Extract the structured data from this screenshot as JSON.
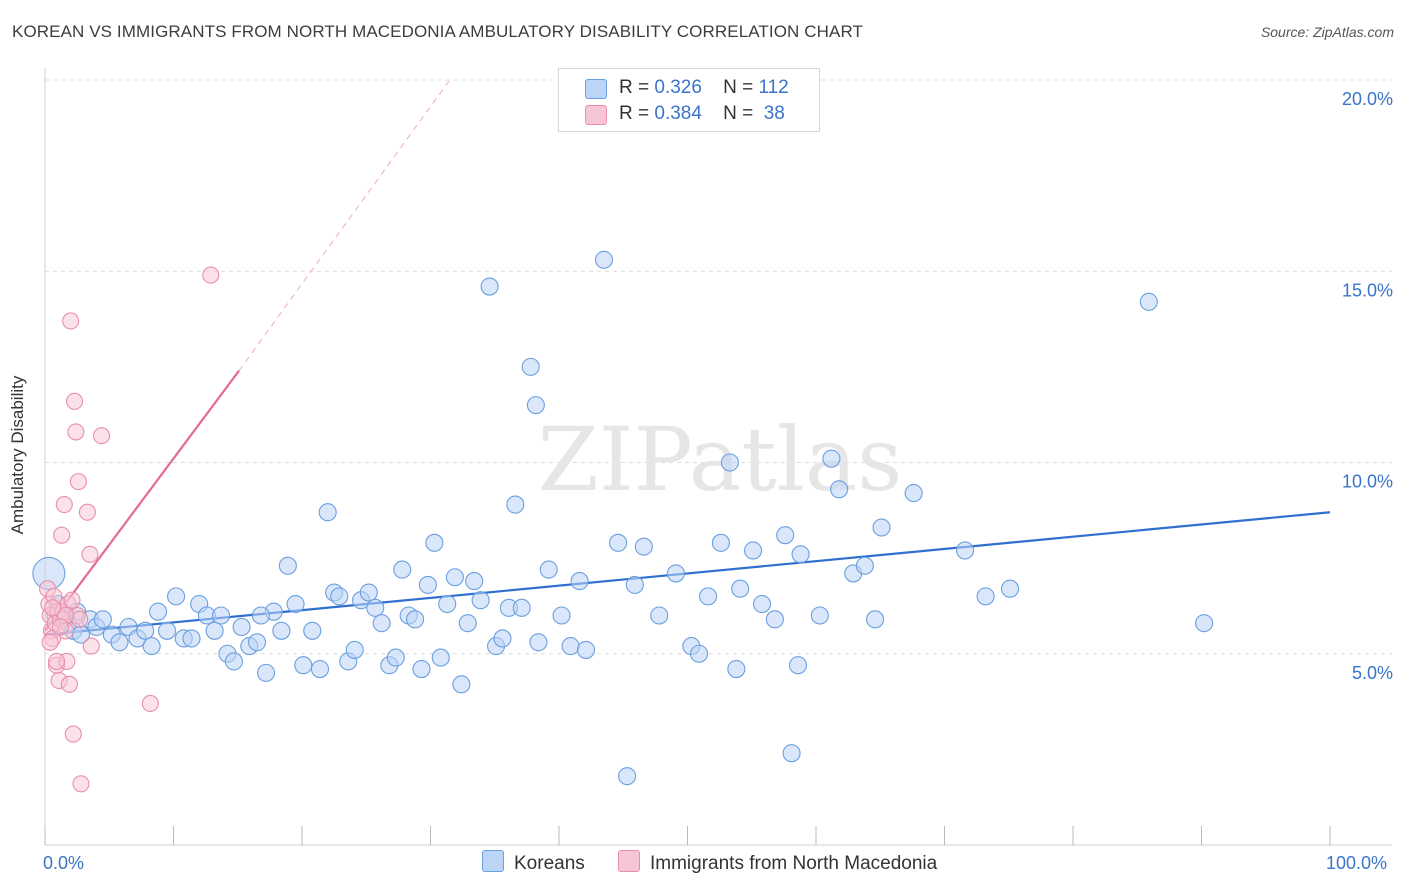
{
  "title": "KOREAN VS IMMIGRANTS FROM NORTH MACEDONIA AMBULATORY DISABILITY CORRELATION CHART",
  "source": "Source: ZipAtlas.com",
  "watermark": "ZIPatlas",
  "legend": {
    "rows": [
      {
        "r_label": "R =",
        "r_value": "0.326",
        "n_label": "N =",
        "n_value": "112"
      },
      {
        "r_label": "R =",
        "r_value": "0.384",
        "n_label": "N =",
        "n_value": "38"
      }
    ]
  },
  "bottom_legend": {
    "koreans": "Koreans",
    "macedonia": "Immigrants from North Macedonia"
  },
  "colors": {
    "koreans": "#6a9fe0",
    "koreans_fill": "#bcd4f5",
    "macedonia": "#e98fab",
    "macedonia_fill": "#f7c6d4",
    "trend_blue": "#2f6fd0",
    "trend_pink": "#e36a94",
    "axis_label": "#3a74c9"
  },
  "chart_data": {
    "type": "scatter",
    "title": "KOREAN VS IMMIGRANTS FROM NORTH MACEDONIA AMBULATORY DISABILITY CORRELATION CHART",
    "xlabel": "",
    "ylabel": "Ambulatory Disability",
    "xlim": [
      0,
      100
    ],
    "ylim": [
      0,
      20
    ],
    "x_tick_labels": [
      "0.0%",
      "100.0%"
    ],
    "y_ticks": [
      5,
      10,
      15,
      20
    ],
    "y_tick_labels": [
      "5.0%",
      "10.0%",
      "15.0%",
      "20.0%"
    ],
    "series": [
      {
        "name": "Koreans",
        "r": 0.326,
        "n": 112,
        "trend": {
          "x": [
            0,
            100
          ],
          "y": [
            5.5,
            8.7
          ]
        },
        "points": [
          [
            0.3,
            7.1
          ],
          [
            0.8,
            6.0
          ],
          [
            1.3,
            6.0
          ],
          [
            1.8,
            5.8
          ],
          [
            2.2,
            5.6
          ],
          [
            2.8,
            5.5
          ],
          [
            3.5,
            5.9
          ],
          [
            4.0,
            5.7
          ],
          [
            4.5,
            5.9
          ],
          [
            5.2,
            5.5
          ],
          [
            5.8,
            5.3
          ],
          [
            6.5,
            5.7
          ],
          [
            7.2,
            5.4
          ],
          [
            7.8,
            5.6
          ],
          [
            8.3,
            5.2
          ],
          [
            8.8,
            6.1
          ],
          [
            9.5,
            5.6
          ],
          [
            10.2,
            6.5
          ],
          [
            10.8,
            5.4
          ],
          [
            11.4,
            5.4
          ],
          [
            12.0,
            6.3
          ],
          [
            12.6,
            6.0
          ],
          [
            13.2,
            5.6
          ],
          [
            13.7,
            6.0
          ],
          [
            14.2,
            5.0
          ],
          [
            14.7,
            4.8
          ],
          [
            15.3,
            5.7
          ],
          [
            15.9,
            5.2
          ],
          [
            16.5,
            5.3
          ],
          [
            17.2,
            4.5
          ],
          [
            17.8,
            6.1
          ],
          [
            18.4,
            5.6
          ],
          [
            18.9,
            7.3
          ],
          [
            19.5,
            6.3
          ],
          [
            20.1,
            4.7
          ],
          [
            20.8,
            5.6
          ],
          [
            21.4,
            4.6
          ],
          [
            22.0,
            8.7
          ],
          [
            22.5,
            6.6
          ],
          [
            22.9,
            6.5
          ],
          [
            23.6,
            4.8
          ],
          [
            24.1,
            5.1
          ],
          [
            24.6,
            6.4
          ],
          [
            25.2,
            6.6
          ],
          [
            25.7,
            6.2
          ],
          [
            26.2,
            5.8
          ],
          [
            26.8,
            4.7
          ],
          [
            27.3,
            4.9
          ],
          [
            27.8,
            7.2
          ],
          [
            28.3,
            6.0
          ],
          [
            28.8,
            5.9
          ],
          [
            29.3,
            4.6
          ],
          [
            29.8,
            6.8
          ],
          [
            30.3,
            7.9
          ],
          [
            30.8,
            4.9
          ],
          [
            31.3,
            6.3
          ],
          [
            31.9,
            7.0
          ],
          [
            32.4,
            4.2
          ],
          [
            32.9,
            5.8
          ],
          [
            33.4,
            6.9
          ],
          [
            33.9,
            6.4
          ],
          [
            34.6,
            14.6
          ],
          [
            35.1,
            5.2
          ],
          [
            35.6,
            5.4
          ],
          [
            36.1,
            6.2
          ],
          [
            36.6,
            8.9
          ],
          [
            37.1,
            6.2
          ],
          [
            37.8,
            12.5
          ],
          [
            38.4,
            5.3
          ],
          [
            38.2,
            11.5
          ],
          [
            39.2,
            7.2
          ],
          [
            40.2,
            6.0
          ],
          [
            40.9,
            5.2
          ],
          [
            41.6,
            6.9
          ],
          [
            42.1,
            5.1
          ],
          [
            43.5,
            15.3
          ],
          [
            44.6,
            7.9
          ],
          [
            45.3,
            1.8
          ],
          [
            45.9,
            6.8
          ],
          [
            46.6,
            7.8
          ],
          [
            47.8,
            6.0
          ],
          [
            49.1,
            7.1
          ],
          [
            50.3,
            5.2
          ],
          [
            50.9,
            5.0
          ],
          [
            51.6,
            6.5
          ],
          [
            52.6,
            7.9
          ],
          [
            53.3,
            10.0
          ],
          [
            53.8,
            4.6
          ],
          [
            54.1,
            6.7
          ],
          [
            55.1,
            7.7
          ],
          [
            55.8,
            6.3
          ],
          [
            56.8,
            5.9
          ],
          [
            57.6,
            8.1
          ],
          [
            58.1,
            2.4
          ],
          [
            58.6,
            4.7
          ],
          [
            58.8,
            7.6
          ],
          [
            60.3,
            6.0
          ],
          [
            61.2,
            10.1
          ],
          [
            61.8,
            9.3
          ],
          [
            62.9,
            7.1
          ],
          [
            63.8,
            7.3
          ],
          [
            64.6,
            5.9
          ],
          [
            65.1,
            8.3
          ],
          [
            67.6,
            9.2
          ],
          [
            71.6,
            7.7
          ],
          [
            73.2,
            6.5
          ],
          [
            75.1,
            6.7
          ],
          [
            85.9,
            14.2
          ],
          [
            90.2,
            5.8
          ],
          [
            1.0,
            6.3
          ],
          [
            2.5,
            6.1
          ],
          [
            16.8,
            6.0
          ]
        ]
      },
      {
        "name": "Immigrants from North Macedonia",
        "r": 0.384,
        "n": 38,
        "trend": {
          "x": [
            0,
            15.1
          ],
          "y": [
            5.6,
            12.4
          ]
        },
        "trend_dashed": {
          "x": [
            15.1,
            31.5
          ],
          "y": [
            12.4,
            20.0
          ]
        },
        "points": [
          [
            0.2,
            6.7
          ],
          [
            0.3,
            6.3
          ],
          [
            0.4,
            6.0
          ],
          [
            0.5,
            5.6
          ],
          [
            0.6,
            5.4
          ],
          [
            0.7,
            6.5
          ],
          [
            0.8,
            5.8
          ],
          [
            0.9,
            4.7
          ],
          [
            1.0,
            6.1
          ],
          [
            1.1,
            4.3
          ],
          [
            1.2,
            5.9
          ],
          [
            1.3,
            8.1
          ],
          [
            1.4,
            6.1
          ],
          [
            1.5,
            8.9
          ],
          [
            1.6,
            5.6
          ],
          [
            1.7,
            4.8
          ],
          [
            1.8,
            6.3
          ],
          [
            1.9,
            4.2
          ],
          [
            2.0,
            13.7
          ],
          [
            2.1,
            6.4
          ],
          [
            2.2,
            2.9
          ],
          [
            2.3,
            11.6
          ],
          [
            2.4,
            10.8
          ],
          [
            2.5,
            6.0
          ],
          [
            2.6,
            9.5
          ],
          [
            2.7,
            5.9
          ],
          [
            2.8,
            1.6
          ],
          [
            3.3,
            8.7
          ],
          [
            3.5,
            7.6
          ],
          [
            3.6,
            5.2
          ],
          [
            4.4,
            10.7
          ],
          [
            8.2,
            3.7
          ],
          [
            12.9,
            14.9
          ],
          [
            0.4,
            5.3
          ],
          [
            0.9,
            4.8
          ],
          [
            1.6,
            6.0
          ],
          [
            1.2,
            5.7
          ],
          [
            0.6,
            6.2
          ]
        ]
      }
    ]
  }
}
